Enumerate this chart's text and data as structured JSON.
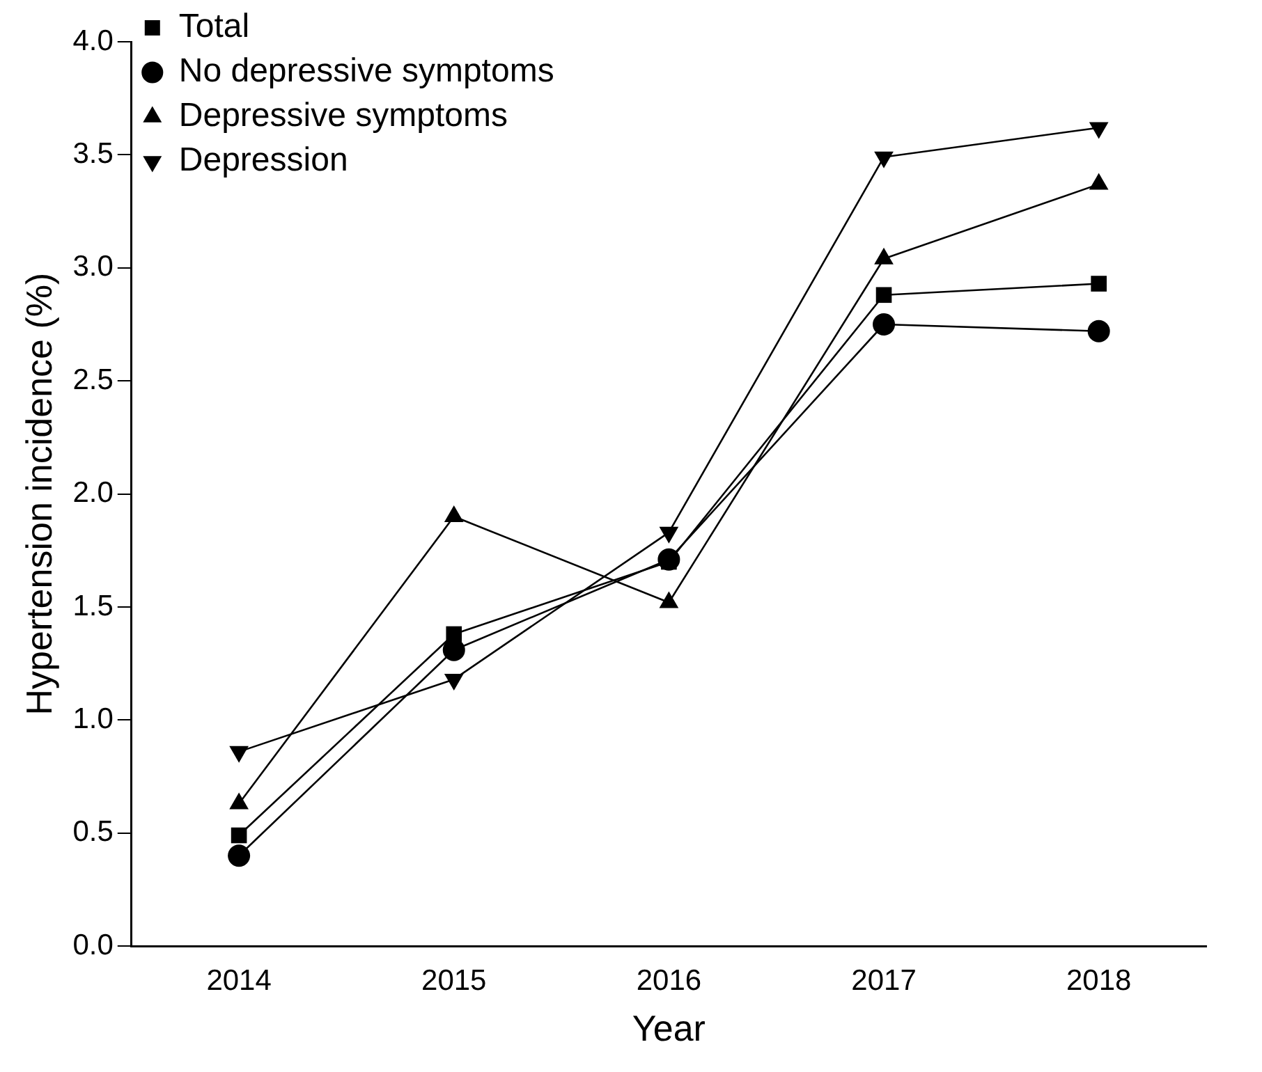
{
  "chart_data": {
    "type": "line",
    "xlabel": "Year",
    "ylabel": "Hypertension incidence (%)",
    "categories": [
      "2014",
      "2015",
      "2016",
      "2017",
      "2018"
    ],
    "series": [
      {
        "name": "Total",
        "color": "#000000",
        "marker": "square",
        "values": [
          0.49,
          1.38,
          1.7,
          2.88,
          2.93
        ]
      },
      {
        "name": "No depressive symptoms",
        "color": "#000000",
        "marker": "circle",
        "values": [
          0.4,
          1.31,
          1.71,
          2.75,
          2.72
        ]
      },
      {
        "name": "Depressive symptoms",
        "color": "#000000",
        "marker": "triangle",
        "values": [
          0.63,
          1.9,
          1.52,
          3.04,
          3.37
        ]
      },
      {
        "name": "Depression",
        "color": "#000000",
        "marker": "triangle-down",
        "values": [
          0.86,
          1.18,
          1.83,
          3.49,
          3.62
        ]
      }
    ],
    "ylim": [
      0,
      4
    ],
    "yticks": [
      {
        "value": 0,
        "label": "0.0"
      },
      0.5,
      {
        "value": 1,
        "label": "1.0"
      },
      1.5,
      {
        "value": 2,
        "label": "2.0"
      },
      2.5,
      {
        "value": 3,
        "label": "3.0"
      },
      3.5,
      {
        "value": 4,
        "label": "4.0"
      }
    ],
    "grid": false,
    "legend": "top left",
    "line_style": "solid"
  }
}
